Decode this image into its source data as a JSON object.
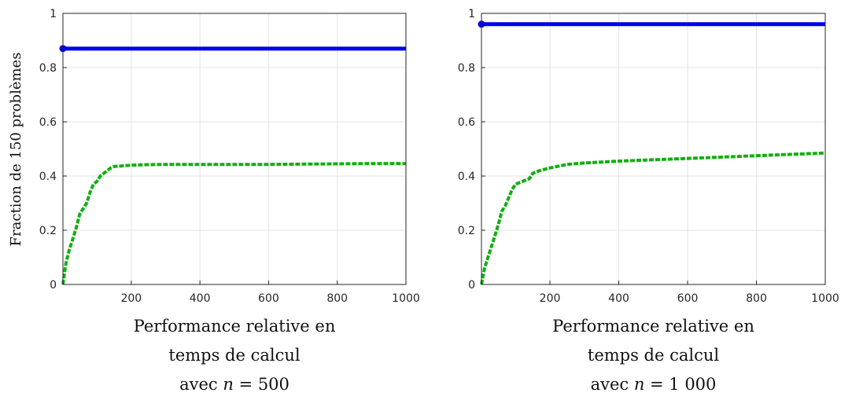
{
  "y_axis_label": "Fraction de 150 problèmes",
  "chart_data": [
    {
      "type": "line",
      "xlabel_lines": [
        "Performance relative en",
        "temps de calcul"
      ],
      "caption": {
        "prefix": "avec ",
        "var": "n",
        "suffix": " = 500"
      },
      "xlim": [
        1,
        1000
      ],
      "ylim": [
        0,
        1
      ],
      "x_ticks": [
        200,
        400,
        600,
        800,
        1000
      ],
      "y_ticks": [
        0,
        0.2,
        0.4,
        0.6,
        0.8,
        1
      ],
      "x_tick_labels": [
        "200",
        "400",
        "600",
        "800",
        "1000"
      ],
      "y_tick_labels": [
        "0",
        "0.2",
        "0.4",
        "0.6",
        "0.8",
        "1"
      ],
      "grid": true,
      "series": [
        {
          "color": "#0000ee",
          "style": "solid",
          "x": [
            1,
            1000
          ],
          "y": [
            0.87,
            0.87
          ],
          "start_marker": true
        },
        {
          "color": "#10b010",
          "style": "dashed",
          "x": [
            1,
            10,
            20,
            30,
            40,
            50,
            60,
            70,
            80,
            90,
            100,
            110,
            120,
            130,
            140,
            150,
            170,
            200,
            250,
            300,
            400,
            500,
            600,
            700,
            800,
            900,
            1000
          ],
          "y": [
            0,
            0.08,
            0.13,
            0.17,
            0.21,
            0.26,
            0.28,
            0.3,
            0.34,
            0.37,
            0.38,
            0.4,
            0.41,
            0.42,
            0.43,
            0.435,
            0.437,
            0.44,
            0.442,
            0.443,
            0.443,
            0.443,
            0.443,
            0.444,
            0.445,
            0.446,
            0.446
          ]
        }
      ]
    },
    {
      "type": "line",
      "xlabel_lines": [
        "Performance relative en",
        "temps de calcul"
      ],
      "caption": {
        "prefix": "avec ",
        "var": "n",
        "suffix": " = 1 000"
      },
      "xlim": [
        1,
        1000
      ],
      "ylim": [
        0,
        1
      ],
      "x_ticks": [
        200,
        400,
        600,
        800,
        1000
      ],
      "y_ticks": [
        0,
        0.2,
        0.4,
        0.6,
        0.8,
        1
      ],
      "x_tick_labels": [
        "200",
        "400",
        "600",
        "800",
        "1000"
      ],
      "y_tick_labels": [
        "0",
        "0.2",
        "0.4",
        "0.6",
        "0.8",
        "1"
      ],
      "grid": true,
      "series": [
        {
          "color": "#0000ee",
          "style": "solid",
          "x": [
            1,
            1000
          ],
          "y": [
            0.96,
            0.96
          ],
          "start_marker": true
        },
        {
          "color": "#10b010",
          "style": "dashed",
          "x": [
            1,
            10,
            20,
            30,
            40,
            50,
            60,
            70,
            80,
            90,
            100,
            120,
            140,
            150,
            170,
            200,
            250,
            300,
            400,
            500,
            600,
            700,
            800,
            900,
            1000
          ],
          "y": [
            0,
            0.06,
            0.1,
            0.14,
            0.18,
            0.22,
            0.27,
            0.29,
            0.32,
            0.35,
            0.37,
            0.38,
            0.39,
            0.41,
            0.42,
            0.43,
            0.443,
            0.448,
            0.455,
            0.46,
            0.465,
            0.47,
            0.475,
            0.48,
            0.485
          ]
        }
      ]
    }
  ]
}
